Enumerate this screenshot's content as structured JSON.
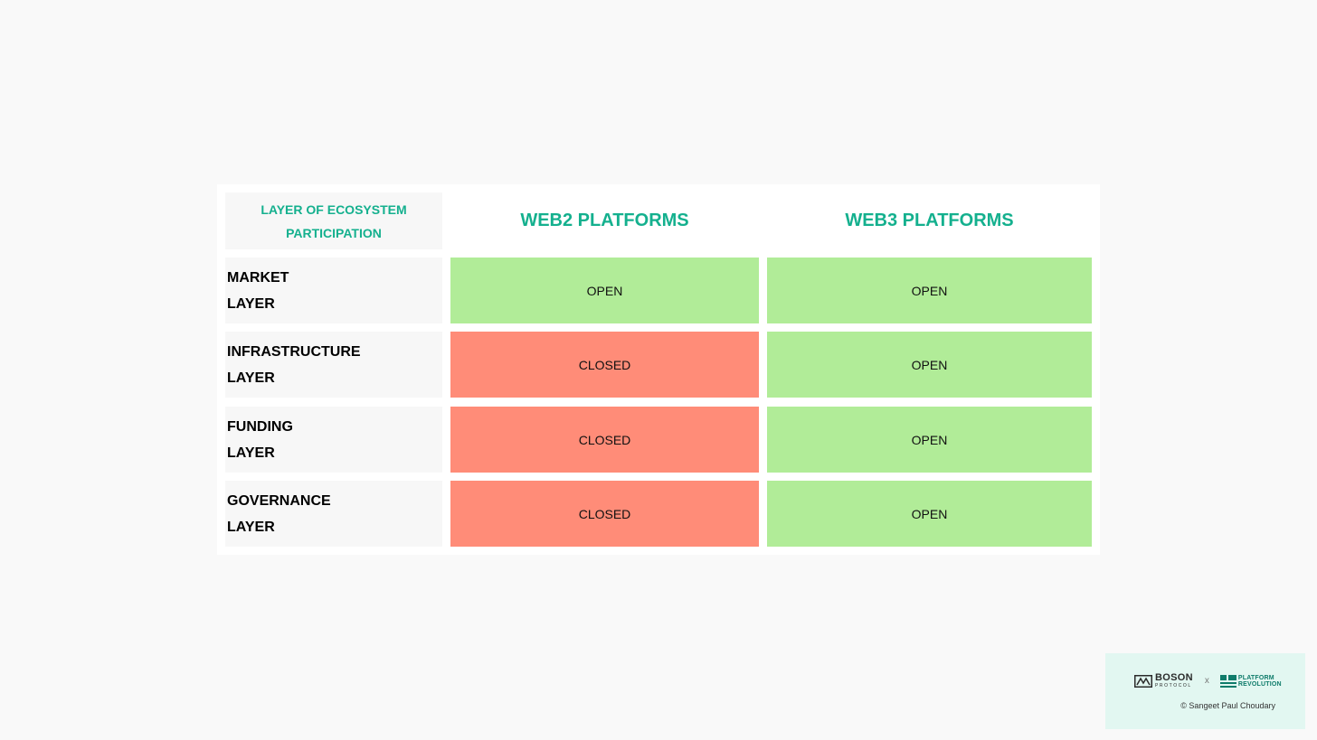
{
  "table": {
    "corner_line1": "LAYER OF ECOSYSTEM",
    "corner_line2": "PARTICIPATION",
    "columns": [
      "WEB2 PLATFORMS",
      "WEB3 PLATFORMS"
    ],
    "rows": [
      {
        "label": "MARKET\nLAYER",
        "web2": "OPEN",
        "web3": "OPEN"
      },
      {
        "label": "INFRASTRUCTURE\nLAYER",
        "web2": "CLOSED",
        "web3": "OPEN"
      },
      {
        "label": "FUNDING\nLAYER",
        "web2": "CLOSED",
        "web3": "OPEN"
      },
      {
        "label": "GOVERNANCE\nLAYER",
        "web2": "CLOSED",
        "web3": "OPEN"
      }
    ]
  },
  "credit": {
    "boson_name": "BOSON",
    "boson_sub": "PROTOCOL",
    "separator": "x",
    "platform_line1": "PLATFORM",
    "platform_line2": "REVOLUTION",
    "copyright": "© Sangeet Paul Choudary"
  },
  "colors": {
    "accent_green": "#14b08e",
    "open_fill": "#b1ec98",
    "closed_fill": "#ff8c78",
    "credit_bg": "#e2f7f1"
  },
  "icons": {
    "boson_logo": "boson-protocol-logo-icon",
    "platform_logo": "platform-revolution-logo-icon"
  }
}
